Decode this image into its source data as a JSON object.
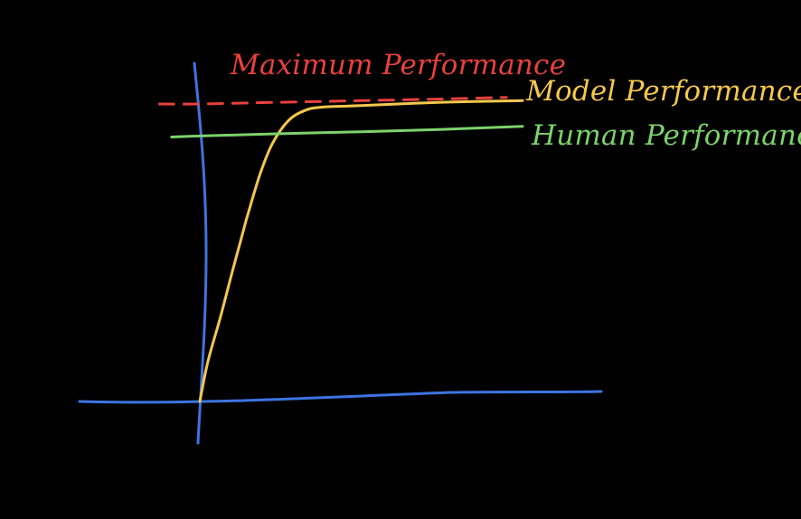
{
  "chart_data": {
    "type": "line",
    "title": "",
    "xlabel": "",
    "ylabel": "",
    "xlim": [
      0,
      100
    ],
    "ylim": [
      0,
      100
    ],
    "grid": false,
    "legend": "none",
    "series": [
      {
        "name": "Model Performance",
        "color": "#f5c84c",
        "dashed": false,
        "x": [
          0,
          2,
          5,
          8,
          10,
          12,
          15,
          18,
          22,
          26,
          30,
          40,
          60,
          80
        ],
        "y": [
          0,
          12,
          25,
          39,
          48,
          57,
          69,
          78,
          85,
          88,
          89,
          89.5,
          90.5,
          91
        ]
      },
      {
        "name": "Human Performance",
        "color": "#7cd36a",
        "dashed": false,
        "x": [
          -7,
          0,
          20,
          40,
          60,
          80
        ],
        "y": [
          80,
          80.3,
          81,
          81.6,
          82.3,
          83.2
        ]
      },
      {
        "name": "Maximum Performance",
        "color": "#e8413d",
        "dashed": true,
        "x": [
          -10,
          0,
          20,
          40,
          60,
          76
        ],
        "y": [
          90,
          90,
          90.5,
          91,
          91.5,
          92
        ]
      }
    ],
    "axes_color": "#3d74e0"
  }
}
